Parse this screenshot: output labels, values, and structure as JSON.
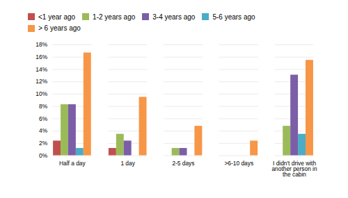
{
  "chart_data": {
    "type": "bar",
    "categories": [
      "Half a day",
      "1 day",
      "2-5 days",
      ">6-10 days",
      "I didn't drive with\nanother person in\nthe cabin"
    ],
    "series": [
      {
        "name": "<1 year ago",
        "color": "#c0504d",
        "values": [
          2.4,
          1.2,
          0.0,
          0.0,
          0.0
        ]
      },
      {
        "name": "1-2 years ago",
        "color": "#9bbb59",
        "values": [
          8.3,
          3.5,
          1.2,
          0.0,
          4.8
        ]
      },
      {
        "name": "3-4 years ago",
        "color": "#7b5ea7",
        "values": [
          8.3,
          2.4,
          1.2,
          0.0,
          13.1
        ]
      },
      {
        "name": "5-6 years ago",
        "color": "#4bacc6",
        "values": [
          1.2,
          0.0,
          0.0,
          0.0,
          3.5
        ]
      },
      {
        "name": "> 6 years ago",
        "color": "#f79646",
        "values": [
          16.7,
          9.5,
          4.8,
          2.4,
          15.5
        ]
      }
    ],
    "ylim": [
      0,
      18
    ],
    "yticks": [
      {
        "value": 0,
        "label": "0%"
      },
      {
        "value": 2,
        "label": "2%"
      },
      {
        "value": 4,
        "label": "4%"
      },
      {
        "value": 6,
        "label": "6%"
      },
      {
        "value": 8,
        "label": "8%"
      },
      {
        "value": 10,
        "label": "10%"
      },
      {
        "value": 12,
        "label": "12%"
      },
      {
        "value": 14,
        "label": "14%"
      },
      {
        "value": 16,
        "label": "16%"
      },
      {
        "value": 18,
        "label": "18%"
      }
    ],
    "grid": true,
    "legend": "top"
  }
}
